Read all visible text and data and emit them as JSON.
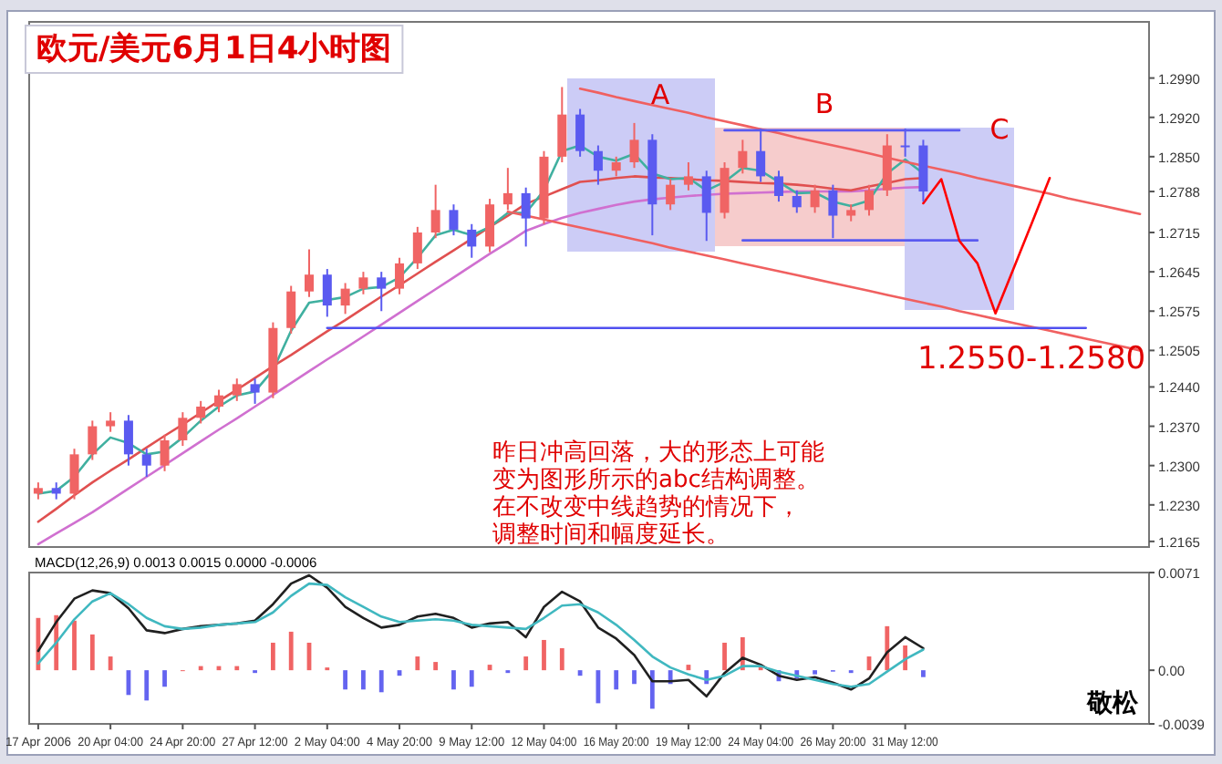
{
  "chart_data": [
    {
      "type": "candlestick",
      "title": "欧元/美元6月1日4小时图",
      "categories": [
        null,
        null,
        null,
        null,
        null,
        null,
        null,
        null,
        null,
        null,
        null,
        null,
        null,
        null,
        null,
        null,
        null,
        null,
        null,
        null,
        null,
        null,
        null,
        null,
        null,
        null,
        null,
        null,
        null,
        null,
        null,
        null,
        null,
        null,
        null,
        null,
        null,
        null,
        null,
        null,
        null,
        null,
        null,
        null,
        null,
        null,
        null,
        null,
        null,
        null,
        null,
        null,
        null,
        null,
        null,
        null,
        null,
        null,
        null,
        null,
        null,
        null
      ],
      "ohlc": [
        [
          1.225,
          1.227,
          1.224,
          1.226
        ],
        [
          1.226,
          1.227,
          1.224,
          1.225
        ],
        [
          1.225,
          1.233,
          1.224,
          1.232
        ],
        [
          1.232,
          1.238,
          1.231,
          1.237
        ],
        [
          1.237,
          1.2395,
          1.236,
          1.238
        ],
        [
          1.238,
          1.239,
          1.23,
          1.232
        ],
        [
          1.232,
          1.233,
          1.228,
          1.23
        ],
        [
          1.23,
          1.2355,
          1.229,
          1.2345
        ],
        [
          1.2345,
          1.2395,
          1.2335,
          1.2385
        ],
        [
          1.2385,
          1.2415,
          1.2375,
          1.2405
        ],
        [
          1.2405,
          1.2435,
          1.2395,
          1.2425
        ],
        [
          1.2425,
          1.2455,
          1.2415,
          1.2445
        ],
        [
          1.2445,
          1.2455,
          1.241,
          1.243
        ],
        [
          1.243,
          1.2555,
          1.242,
          1.2545
        ],
        [
          1.2545,
          1.262,
          1.2535,
          1.261
        ],
        [
          1.261,
          1.2685,
          1.26,
          1.264
        ],
        [
          1.264,
          1.265,
          1.2565,
          1.2585
        ],
        [
          1.2585,
          1.2625,
          1.257,
          1.2615
        ],
        [
          1.2615,
          1.2645,
          1.2605,
          1.2635
        ],
        [
          1.2635,
          1.2645,
          1.2575,
          1.2615
        ],
        [
          1.2615,
          1.267,
          1.2605,
          1.266
        ],
        [
          1.266,
          1.2725,
          1.265,
          1.2715
        ],
        [
          1.2715,
          1.28,
          1.2705,
          1.2755
        ],
        [
          1.2755,
          1.2765,
          1.271,
          1.272
        ],
        [
          1.272,
          1.273,
          1.267,
          1.269
        ],
        [
          1.269,
          1.2775,
          1.268,
          1.2765
        ],
        [
          1.2765,
          1.283,
          1.2755,
          1.2785
        ],
        [
          1.2785,
          1.2795,
          1.269,
          1.274
        ],
        [
          1.274,
          1.286,
          1.273,
          1.285
        ],
        [
          1.285,
          1.2974,
          1.284,
          1.2925
        ],
        [
          1.2925,
          1.2935,
          1.285,
          1.286
        ],
        [
          1.286,
          1.287,
          1.28,
          1.2825
        ],
        [
          1.2825,
          1.285,
          1.2815,
          1.284
        ],
        [
          1.284,
          1.291,
          1.283,
          1.288
        ],
        [
          1.288,
          1.289,
          1.271,
          1.2765
        ],
        [
          1.2765,
          1.281,
          1.2755,
          1.28
        ],
        [
          1.28,
          1.284,
          1.279,
          1.2815
        ],
        [
          1.2815,
          1.2825,
          1.27,
          1.275
        ],
        [
          1.275,
          1.284,
          1.274,
          1.283
        ],
        [
          1.283,
          1.288,
          1.282,
          1.286
        ],
        [
          1.286,
          1.29,
          1.2805,
          1.2815
        ],
        [
          1.2815,
          1.2825,
          1.277,
          1.278
        ],
        [
          1.278,
          1.279,
          1.275,
          1.276
        ],
        [
          1.276,
          1.28,
          1.275,
          1.279
        ],
        [
          1.279,
          1.28,
          1.2705,
          1.2745
        ],
        [
          1.2745,
          1.2765,
          1.2735,
          1.2755
        ],
        [
          1.2755,
          1.28,
          1.2745,
          1.279
        ],
        [
          1.279,
          1.289,
          1.278,
          1.287
        ],
        [
          1.287,
          1.29,
          1.285,
          1.287
        ],
        [
          1.287,
          1.288,
          1.277,
          1.2788
        ],
        null,
        null,
        null,
        null,
        null,
        null,
        null,
        null,
        null,
        null,
        null,
        null
      ],
      "colors": [
        "#f06464",
        "#5a5af0",
        "#f06464",
        "#f06464",
        "#f06464",
        "#5a5af0",
        "#5a5af0",
        "#f06464",
        "#f06464",
        "#f06464",
        "#f06464",
        "#f06464",
        "#5a5af0",
        "#f06464",
        "#f06464",
        "#f06464",
        "#5a5af0",
        "#f06464",
        "#f06464",
        "#5a5af0",
        "#f06464",
        "#f06464",
        "#f06464",
        "#5a5af0",
        "#5a5af0",
        "#f06464",
        "#f06464",
        "#5a5af0",
        "#f06464",
        "#f06464",
        "#5a5af0",
        "#5a5af0",
        "#f06464",
        "#f06464",
        "#5a5af0",
        "#f06464",
        "#f06464",
        "#5a5af0",
        "#f06464",
        "#f06464",
        "#5a5af0",
        "#5a5af0",
        "#5a5af0",
        "#f06464",
        "#5a5af0",
        "#f06464",
        "#f06464",
        "#f06464",
        "#5a5af0",
        "#5a5af0",
        null,
        null,
        null,
        null,
        null,
        null,
        null,
        null,
        null,
        null,
        null,
        null
      ],
      "ylim": [
        1.2155,
        1.309
      ],
      "yticks": [
        {
          "value": 1.299,
          "label": "1.2990"
        },
        {
          "value": 1.292,
          "label": "1.2920"
        },
        {
          "value": 1.285,
          "label": "1.2850"
        },
        {
          "value": 1.2788,
          "label": "1.2788"
        },
        {
          "value": 1.2715,
          "label": "1.2715"
        },
        {
          "value": 1.2645,
          "label": "1.2645"
        },
        {
          "value": 1.2575,
          "label": "1.2575"
        },
        {
          "value": 1.2505,
          "label": "1.2505"
        },
        {
          "value": 1.244,
          "label": "1.2440"
        },
        {
          "value": 1.237,
          "label": "1.2370"
        },
        {
          "value": 1.23,
          "label": "1.2300"
        },
        {
          "value": 1.223,
          "label": "1.2230"
        },
        {
          "value": 1.2165,
          "label": "1.2165"
        }
      ],
      "tick_labels": "y",
      "series": [
        {
          "type": "line",
          "color": "#d070d0",
          "values": [
            1.216,
            1.2179,
            1.2198,
            1.2217,
            1.2238,
            1.2259,
            1.228,
            1.2301,
            1.2322,
            1.2343,
            1.2364,
            1.2384,
            1.2405,
            1.2426,
            1.2447,
            1.2468,
            1.2489,
            1.2509,
            1.253,
            1.2551,
            1.2572,
            1.2593,
            1.2614,
            1.2635,
            1.2656,
            1.2677,
            1.2697,
            1.2718,
            1.273,
            1.2741,
            1.275,
            1.2757,
            1.2764,
            1.277,
            1.2774,
            1.2777,
            1.278,
            1.2782,
            1.2784,
            1.2785,
            1.2786,
            1.2787,
            1.2788,
            1.2788,
            1.2788,
            1.2788,
            1.279,
            1.2793,
            1.2795,
            1.2796,
            null,
            null,
            null,
            null,
            null,
            null,
            null,
            null,
            null,
            null,
            null,
            null
          ]
        },
        {
          "type": "line",
          "color": "#e05050",
          "values": [
            1.22,
            1.2223,
            1.2247,
            1.227,
            1.2291,
            1.2311,
            1.2332,
            1.2353,
            1.2373,
            1.2394,
            1.2415,
            1.2435,
            1.2456,
            1.2477,
            1.2497,
            1.2518,
            1.2539,
            1.2559,
            1.258,
            1.2601,
            1.2621,
            1.2642,
            1.2663,
            1.2683,
            1.2704,
            1.2725,
            1.2745,
            1.2766,
            1.2779,
            1.2792,
            1.2805,
            1.2808,
            1.2812,
            1.2815,
            1.2813,
            1.2812,
            1.281,
            1.2808,
            1.2807,
            1.2805,
            1.2803,
            1.2802,
            1.28,
            1.2797,
            1.2793,
            1.279,
            1.2797,
            1.2803,
            1.281,
            1.2812,
            null,
            null,
            null,
            null,
            null,
            null,
            null,
            null,
            null,
            null,
            null,
            null
          ]
        },
        {
          "type": "line",
          "color": "#40b0a0",
          "values": [
            1.225,
            1.2255,
            1.228,
            1.232,
            1.235,
            1.234,
            1.232,
            1.2325,
            1.235,
            1.238,
            1.2405,
            1.2425,
            1.2432,
            1.247,
            1.254,
            1.259,
            1.2595,
            1.26,
            1.2615,
            1.2618,
            1.2635,
            1.267,
            1.271,
            1.272,
            1.271,
            1.2725,
            1.275,
            1.275,
            1.279,
            1.286,
            1.287,
            1.285,
            1.2843,
            1.2855,
            1.282,
            1.281,
            1.2812,
            1.279,
            1.2805,
            1.283,
            1.2825,
            1.2805,
            1.2785,
            1.2786,
            1.277,
            1.2762,
            1.2772,
            1.282,
            1.2845,
            1.282,
            null,
            null,
            null,
            null,
            null,
            null,
            null,
            null,
            null,
            null,
            null,
            null
          ]
        },
        {
          "type": "line",
          "color": "#f06060",
          "values": [
            null,
            null,
            null,
            null,
            null,
            null,
            null,
            null,
            null,
            null,
            null,
            null,
            null,
            null,
            null,
            null,
            null,
            null,
            null,
            null,
            null,
            null,
            null,
            null,
            null,
            null,
            null,
            null,
            null,
            null,
            1.2971,
            1.2964,
            1.2956,
            1.2949,
            1.2942,
            1.2935,
            1.2928,
            1.292,
            1.2913,
            1.2906,
            1.2899,
            1.2892,
            1.2884,
            1.2877,
            1.287,
            1.2863,
            1.2856,
            1.2848,
            1.2841,
            1.2834,
            1.2827,
            1.282,
            1.2812,
            1.2805,
            1.2798,
            1.2791,
            1.2784,
            1.2776,
            1.2769,
            1.2762,
            1.2755,
            1.2748
          ]
        },
        {
          "type": "line",
          "color": "#f06060",
          "values": [
            null,
            null,
            null,
            null,
            null,
            null,
            null,
            null,
            null,
            null,
            null,
            null,
            null,
            null,
            null,
            null,
            null,
            null,
            null,
            null,
            null,
            null,
            null,
            null,
            null,
            null,
            1.2752,
            1.2745,
            1.2738,
            1.2731,
            1.2724,
            1.2717,
            1.271,
            1.2703,
            1.2696,
            1.2688,
            1.2681,
            1.2674,
            1.2667,
            1.266,
            1.2653,
            1.2646,
            1.2639,
            1.2632,
            1.2625,
            1.2618,
            1.2611,
            1.2604,
            1.2597,
            1.259,
            1.2583,
            1.2575,
            1.2568,
            1.2561,
            1.2554,
            1.2547,
            1.254,
            1.2533,
            1.2526,
            1.2519,
            1.2512,
            1.2505
          ]
        },
        {
          "type": "line",
          "color": "#5050f0",
          "values": [
            null,
            null,
            null,
            null,
            null,
            null,
            null,
            null,
            null,
            null,
            null,
            null,
            null,
            null,
            null,
            null,
            1.2545,
            1.2545,
            1.2545,
            1.2545,
            1.2545,
            1.2545,
            1.2545,
            1.2545,
            1.2545,
            1.2545,
            1.2545,
            1.2545,
            1.2545,
            1.2545,
            1.2545,
            1.2545,
            1.2545,
            1.2545,
            1.2545,
            1.2545,
            1.2545,
            1.2545,
            1.2545,
            1.2545,
            1.2545,
            1.2545,
            1.2545,
            1.2545,
            1.2545,
            1.2545,
            1.2545,
            1.2545,
            1.2545,
            1.2545,
            1.2545,
            1.2545,
            1.2545,
            1.2545,
            1.2545,
            1.2545,
            1.2545,
            1.2545,
            1.2545,
            null,
            null,
            null
          ]
        },
        {
          "type": "line",
          "color": "#5a5af0",
          "values": [
            null,
            null,
            null,
            null,
            null,
            null,
            null,
            null,
            null,
            null,
            null,
            null,
            null,
            null,
            null,
            null,
            null,
            null,
            null,
            null,
            null,
            null,
            null,
            null,
            null,
            null,
            null,
            null,
            null,
            null,
            null,
            null,
            null,
            null,
            null,
            null,
            null,
            null,
            1.2897,
            1.2897,
            1.2897,
            1.2897,
            1.2897,
            1.2897,
            1.2897,
            1.2897,
            1.2897,
            1.2897,
            1.2897,
            1.2897,
            1.2897,
            1.2897,
            null,
            null,
            null,
            null,
            null,
            null,
            null,
            null,
            null,
            null
          ]
        },
        {
          "type": "line",
          "color": "#5a5af0",
          "values": [
            null,
            null,
            null,
            null,
            null,
            null,
            null,
            null,
            null,
            null,
            null,
            null,
            null,
            null,
            null,
            null,
            null,
            null,
            null,
            null,
            null,
            null,
            null,
            null,
            null,
            null,
            null,
            null,
            null,
            null,
            null,
            null,
            null,
            null,
            null,
            null,
            null,
            null,
            null,
            1.2701,
            1.2701,
            1.2701,
            1.2701,
            1.2701,
            1.2701,
            1.2701,
            1.2701,
            1.2701,
            1.2701,
            1.2701,
            1.2701,
            1.2701,
            1.2701,
            null,
            null,
            null,
            null,
            null,
            null,
            null,
            null,
            null
          ]
        },
        {
          "type": "line",
          "color": "#ff0000",
          "values": [
            null,
            null,
            null,
            null,
            null,
            null,
            null,
            null,
            null,
            null,
            null,
            null,
            null,
            null,
            null,
            null,
            null,
            null,
            null,
            null,
            null,
            null,
            null,
            null,
            null,
            null,
            null,
            null,
            null,
            null,
            null,
            null,
            null,
            null,
            null,
            null,
            null,
            null,
            null,
            null,
            null,
            null,
            null,
            null,
            null,
            null,
            null,
            null,
            null,
            1.2767,
            1.281,
            1.27,
            1.266,
            1.2571,
            1.2651,
            1.2731,
            1.2812,
            null,
            null,
            null,
            null,
            null
          ]
        }
      ],
      "annotations": [
        "A",
        "B",
        "C",
        "1.2550-1.2580",
        "昨日冲高回落，大的形态上可能",
        "变为图形所示的abc结构调整。",
        "在不改变中线趋势的情况下，",
        "调整时间和幅度延长。"
      ]
    },
    {
      "type": "bar",
      "title": "MACD(12,26,9) 0.0013 0.0015 0.0000 -0.0006",
      "categories": [
        "17 Apr 2006",
        null,
        null,
        null,
        "20 Apr 04:00",
        null,
        null,
        null,
        "24 Apr 20:00",
        null,
        null,
        null,
        "27 Apr 12:00",
        null,
        null,
        null,
        "2 May 04:00",
        null,
        null,
        null,
        "4 May 20:00",
        null,
        null,
        null,
        "9 May 12:00",
        null,
        null,
        null,
        "12 May 04:00",
        null,
        null,
        null,
        "16 May 20:00",
        null,
        null,
        null,
        "19 May 12:00",
        null,
        null,
        null,
        "24 May 04:00",
        null,
        null,
        null,
        "26 May 20:00",
        null,
        null,
        null,
        "31 May 12:00",
        null,
        null,
        null,
        null,
        null,
        null,
        null,
        null,
        null,
        null,
        null,
        null,
        null
      ],
      "ylim": [
        -0.0039,
        0.0071
      ],
      "yticks": [
        0.0071,
        {
          "value": 0,
          "label": "0.00"
        },
        -0.0039
      ],
      "series": [
        {
          "values": [
            0.0038,
            0.004,
            0.0036,
            0.0026,
            0.001,
            -0.0018,
            -0.0022,
            -0.0012,
            0.0,
            0.0003,
            0.0003,
            0.0003,
            -0.0002,
            0.002,
            0.0028,
            0.002,
            0.0002,
            -0.0014,
            -0.0014,
            -0.0016,
            -0.0004,
            0.001,
            0.0006,
            -0.0014,
            -0.0012,
            0.0004,
            -0.0002,
            0.001,
            0.0022,
            0.0016,
            -0.0004,
            -0.0024,
            -0.0014,
            -0.001,
            -0.0028,
            -0.001,
            0.0004,
            -0.001,
            0.002,
            0.0024,
            0.0004,
            -0.0008,
            -0.0006,
            -0.0003,
            -0.0001,
            -0.0002,
            0.001,
            0.0032,
            0.0018,
            -0.0005,
            null,
            null,
            null,
            null,
            null,
            null,
            null,
            null,
            null,
            null,
            null,
            null
          ],
          "colors": [
            "#f06464",
            "#f06464",
            "#f06464",
            "#f06464",
            "#f06464",
            "#6464f0",
            "#6464f0",
            "#6464f0",
            "#f06464",
            "#f06464",
            "#f06464",
            "#f06464",
            "#6464f0",
            "#f06464",
            "#f06464",
            "#f06464",
            "#f06464",
            "#6464f0",
            "#6464f0",
            "#6464f0",
            "#6464f0",
            "#f06464",
            "#f06464",
            "#6464f0",
            "#6464f0",
            "#f06464",
            "#6464f0",
            "#f06464",
            "#f06464",
            "#f06464",
            "#6464f0",
            "#6464f0",
            "#6464f0",
            "#6464f0",
            "#6464f0",
            "#6464f0",
            "#f06464",
            "#6464f0",
            "#f06464",
            "#f06464",
            "#f06464",
            "#6464f0",
            "#6464f0",
            "#6464f0",
            "#6464f0",
            "#6464f0",
            "#f06464",
            "#f06464",
            "#f06464",
            "#6464f0",
            null,
            null,
            null,
            null,
            null,
            null,
            null,
            null,
            null,
            null,
            null,
            null
          ]
        },
        {
          "type": "line",
          "color": "#202020",
          "values": [
            0.0014,
            0.0035,
            0.0052,
            0.0058,
            0.0056,
            0.0045,
            0.0029,
            0.0027,
            0.003,
            0.0032,
            0.0033,
            0.0034,
            0.0036,
            0.0048,
            0.0063,
            0.0069,
            0.006,
            0.0046,
            0.0038,
            0.0031,
            0.0033,
            0.0039,
            0.0041,
            0.0038,
            0.0031,
            0.0034,
            0.0035,
            0.0024,
            0.0046,
            0.0057,
            0.005,
            0.0031,
            0.0023,
            0.0011,
            -0.0008,
            -0.0008,
            -0.0007,
            -0.0019,
            -0.0002,
            0.0009,
            0.0004,
            -0.0004,
            -0.0007,
            -0.0005,
            -0.0009,
            -0.0014,
            -0.0006,
            0.0013,
            0.0024,
            0.0016,
            null,
            null,
            null,
            null,
            null,
            null,
            null,
            null,
            null,
            null,
            null,
            null
          ]
        },
        {
          "type": "line",
          "color": "#40b8c0",
          "values": [
            0.0005,
            0.002,
            0.0037,
            0.005,
            0.0056,
            0.0048,
            0.0038,
            0.0032,
            0.003,
            0.0031,
            0.0033,
            0.0034,
            0.0035,
            0.0042,
            0.0054,
            0.0063,
            0.0062,
            0.0053,
            0.0046,
            0.0039,
            0.0035,
            0.0036,
            0.0037,
            0.0036,
            0.0033,
            0.0032,
            0.0031,
            0.003,
            0.0038,
            0.0047,
            0.0048,
            0.0042,
            0.0033,
            0.0022,
            0.001,
            0.0002,
            -0.0003,
            -0.0007,
            -0.0004,
            0.0003,
            0.0003,
            -0.0001,
            -0.0004,
            -0.0007,
            -0.001,
            -0.0012,
            -0.001,
            -0.0001,
            0.0008,
            0.0015,
            null,
            null,
            null,
            null,
            null,
            null,
            null,
            null,
            null,
            null,
            null,
            null
          ]
        }
      ],
      "annotations": [
        "敬松"
      ]
    }
  ]
}
